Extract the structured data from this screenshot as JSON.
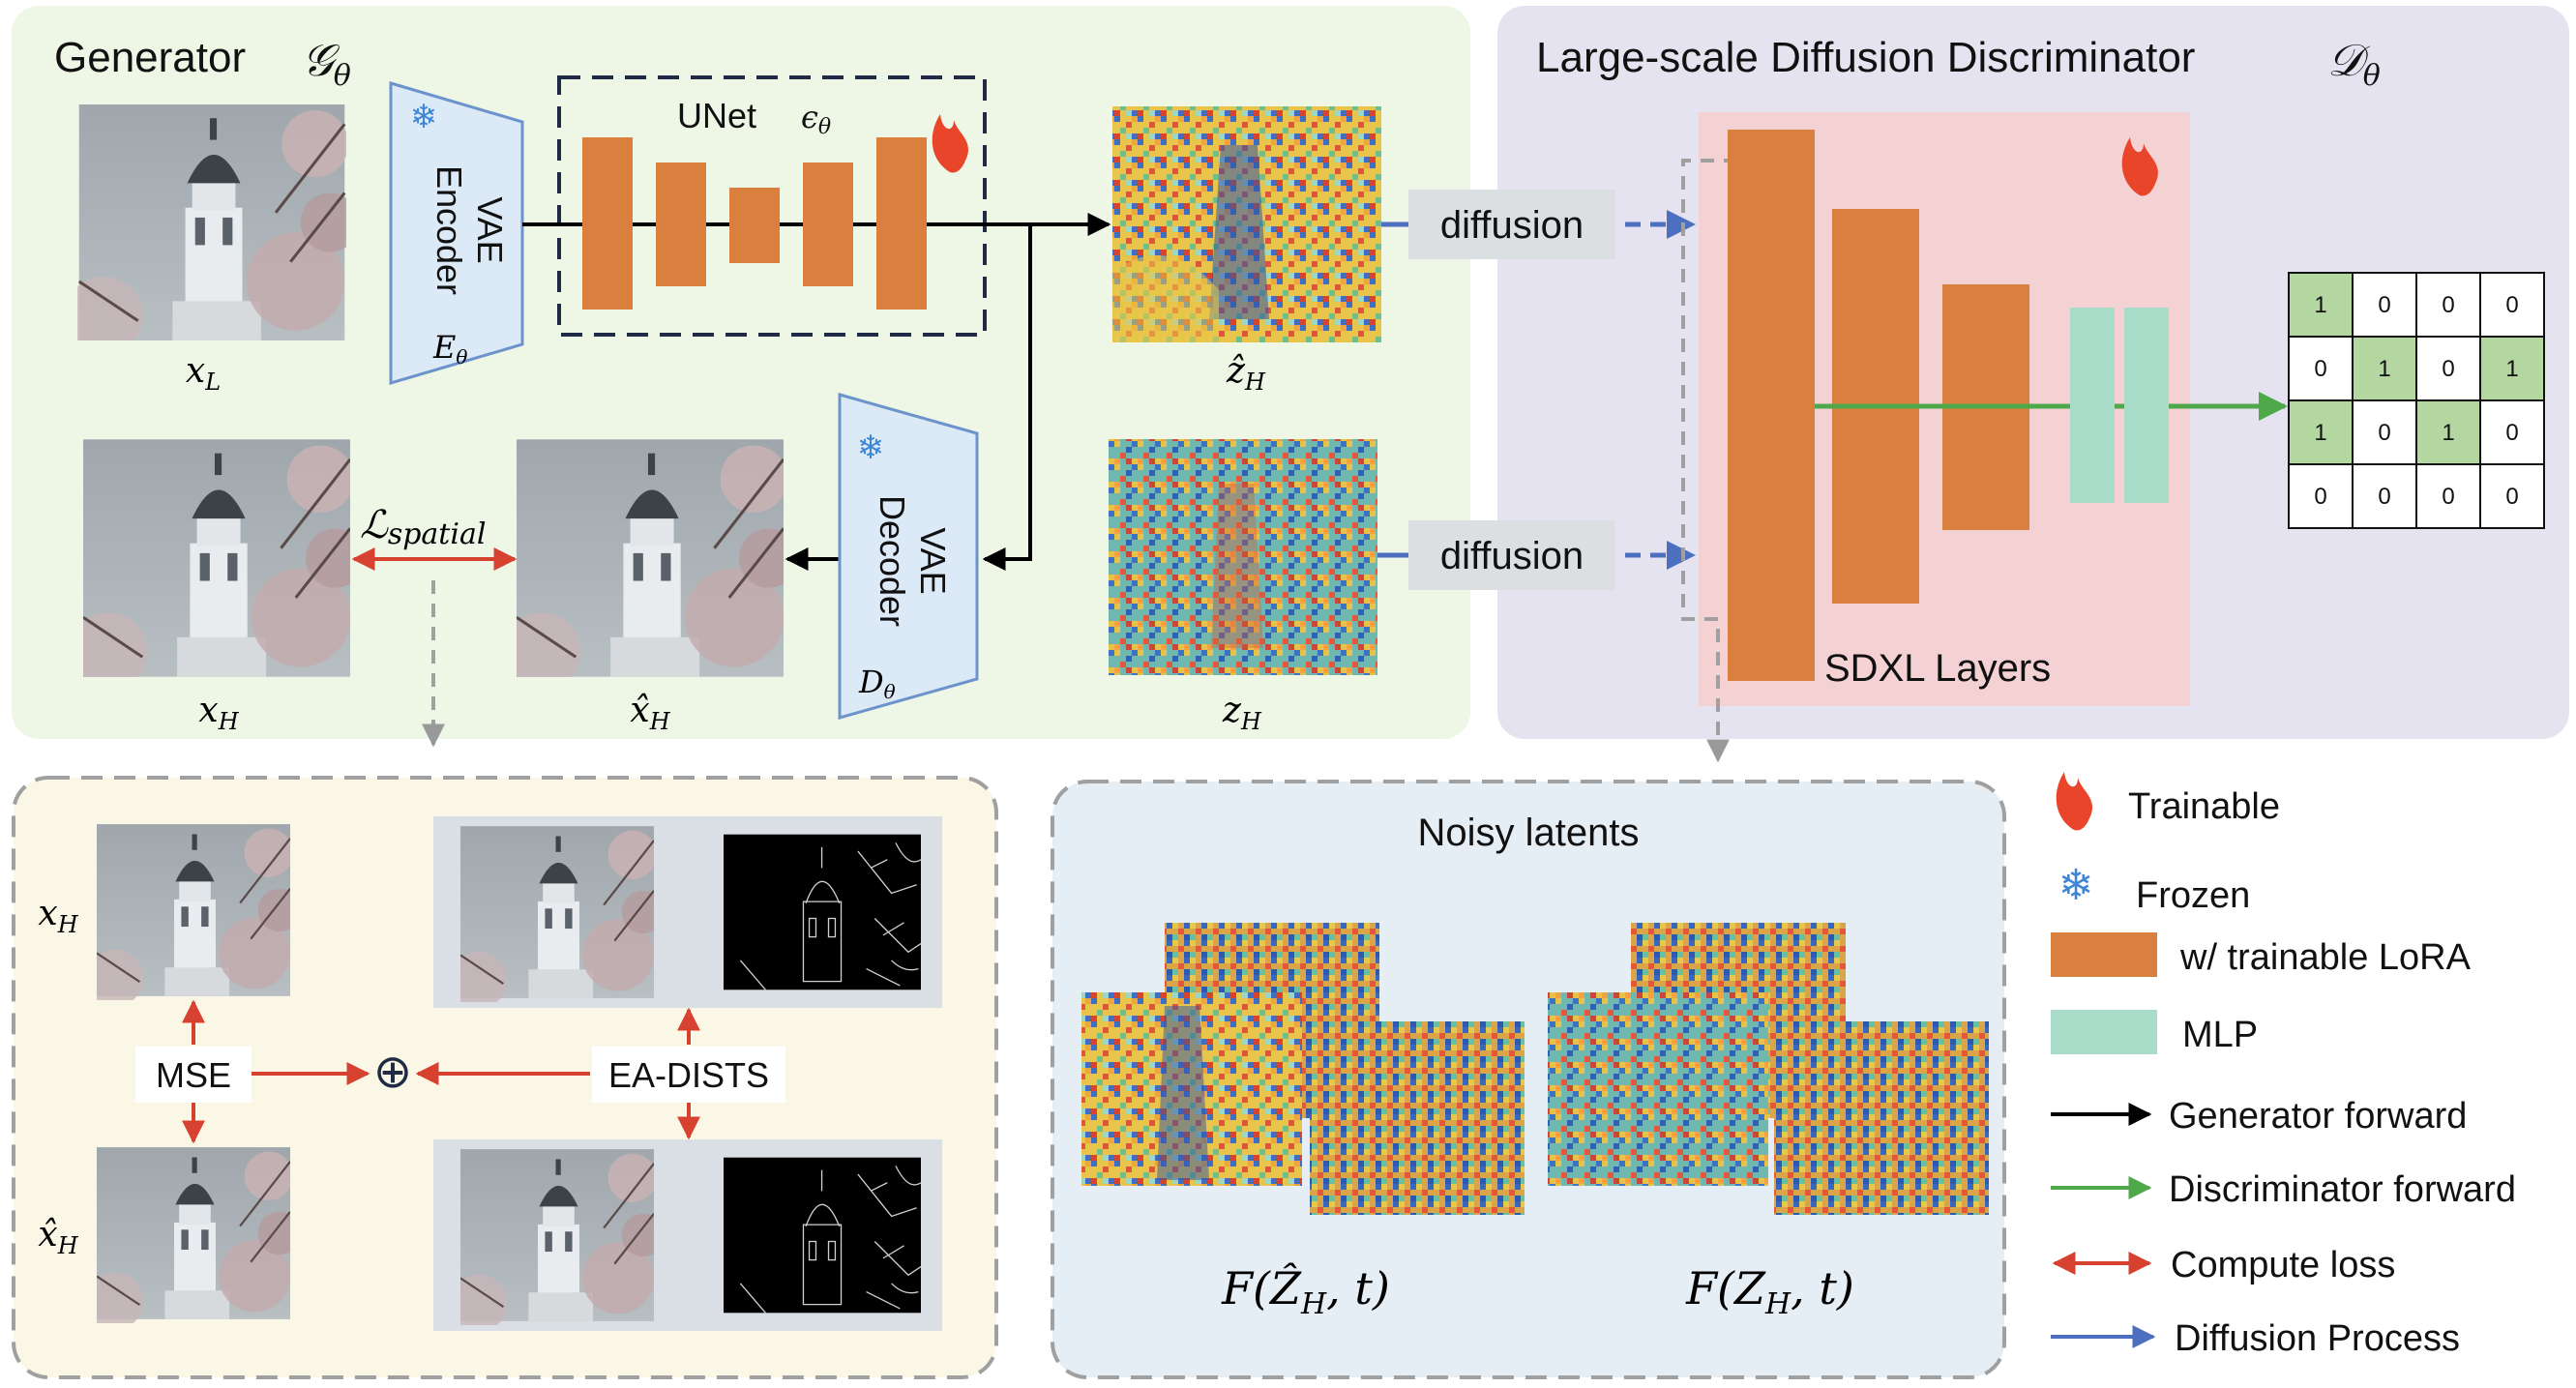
{
  "generator": {
    "title": "Generator",
    "symbol": "𝒢",
    "symbol_sub": "θ",
    "encoder": {
      "line1": "VAE",
      "line2": "Encoder",
      "label": "E",
      "label_sub": "θ"
    },
    "decoder": {
      "line1": "VAE",
      "line2": "Decoder",
      "label": "D",
      "label_sub": "θ"
    },
    "unet": {
      "label": "UNet",
      "symbol": "ϵ",
      "symbol_sub": "θ"
    },
    "inputs": {
      "x_l": {
        "main": "x",
        "sub": "L"
      },
      "x_h": {
        "main": "x",
        "sub": "H"
      },
      "xhat_h": {
        "main": "x̂",
        "sub": "H"
      },
      "zhat_h": {
        "main": "ẑ",
        "sub": "H"
      },
      "z_h": {
        "main": "z",
        "sub": "H"
      }
    },
    "loss_label": {
      "main": "ℒ",
      "sub": "spatial"
    }
  },
  "diffusion_tags": [
    "diffusion",
    "diffusion"
  ],
  "discriminator": {
    "title": "Large-scale Diffusion Discriminator",
    "symbol": "𝒟",
    "symbol_sub": "θ",
    "layers_label": "SDXL Layers",
    "matrix": [
      [
        1,
        0,
        0,
        0
      ],
      [
        0,
        1,
        0,
        1
      ],
      [
        1,
        0,
        1,
        0
      ],
      [
        0,
        0,
        0,
        0
      ]
    ]
  },
  "spatial_loss": {
    "left_labels": {
      "top": {
        "main": "x",
        "sub": "H"
      },
      "bottom": {
        "main": "x̂",
        "sub": "H"
      }
    },
    "mse_label": "MSE",
    "sum_symbol": "⊕",
    "ea_dists_label": "EA-DISTS"
  },
  "noisy_latents": {
    "title": "Noisy latents",
    "formula_left": {
      "pre": "F(",
      "main": "Ẑ",
      "sub": "H",
      "post": ", t)"
    },
    "formula_right": {
      "pre": "F(",
      "main": "Z",
      "sub": "H",
      "post": ", t)"
    }
  },
  "legend": {
    "trainable": "Trainable",
    "frozen": "Frozen",
    "lora": "w/ trainable LoRA",
    "mlp": "MLP",
    "gen_forward": "Generator forward",
    "disc_forward": "Discriminator forward",
    "compute_loss": "Compute loss",
    "diffusion_process": "Diffusion Process"
  },
  "colors": {
    "generator_bg": "#eef6e6",
    "discriminator_bg": "#e6e3f0",
    "sdxl_bg": "#f4d2d4",
    "orange": "#d9803e",
    "mlp": "#a8dcc8",
    "green_arrow": "#4fa84a",
    "red_arrow": "#d7412f",
    "blue_arrow": "#4d6fc0",
    "matrix_green": "#b4d7a2"
  }
}
